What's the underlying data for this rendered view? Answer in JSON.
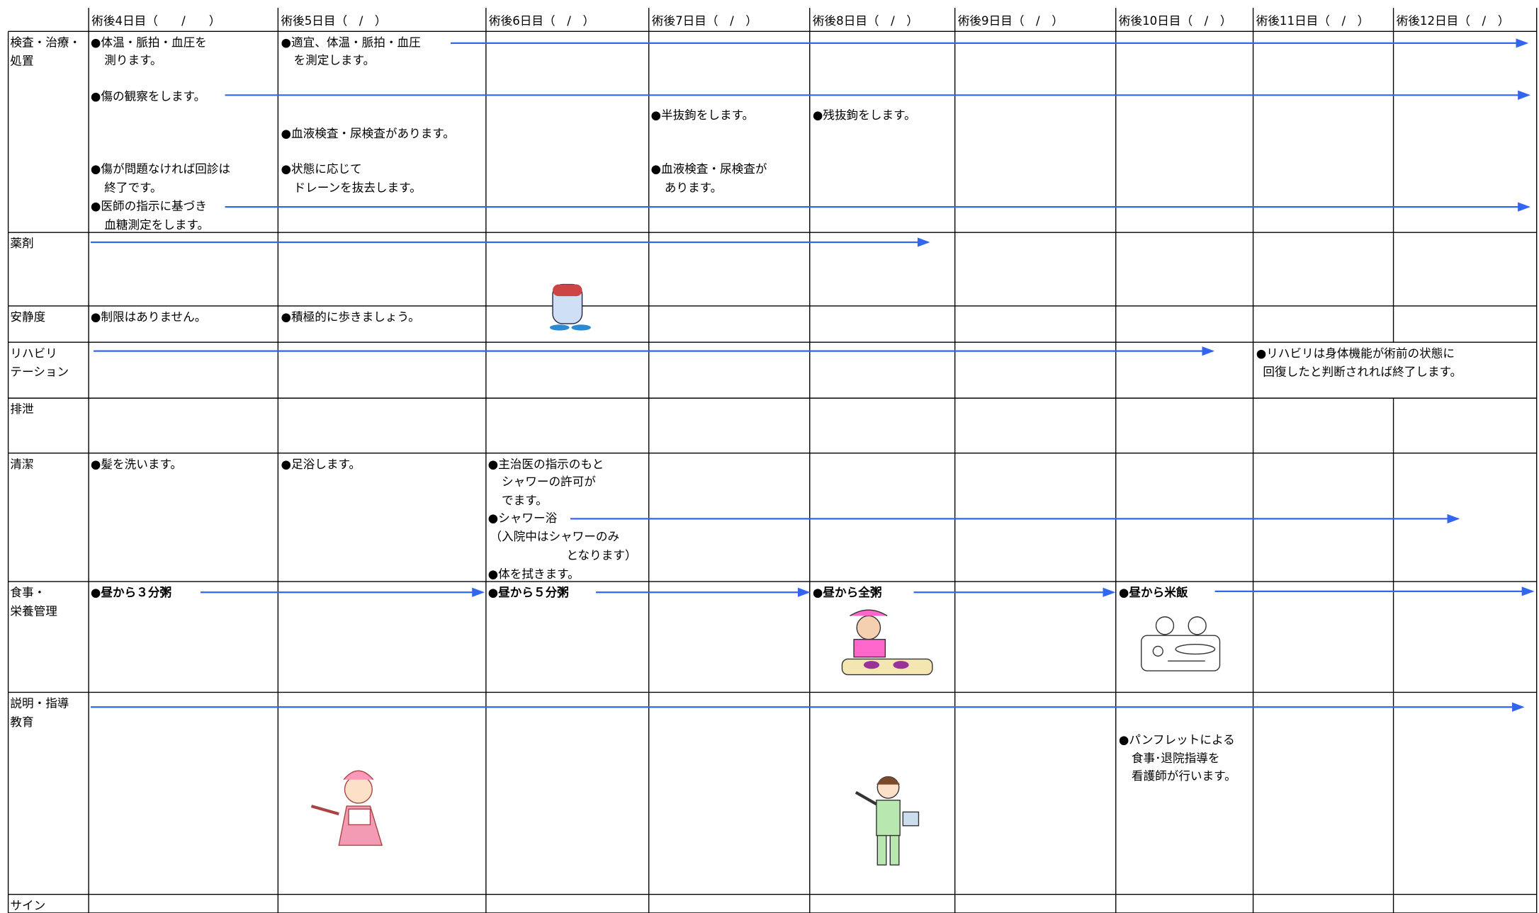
{
  "header": {
    "columns": [
      "術後4日目（　　/　　）",
      "術後5日目（　/　）",
      "術後6日目（　/　）",
      "術後7日目（　/　）",
      "術後8日目（　/　）",
      "術後9日目（　/　）",
      "術後10日目（　/　）",
      "術後11日目（　/　）",
      "術後12日目（　/　）"
    ]
  },
  "rows": [
    {
      "label": [
        "検査・治療・",
        "処置"
      ],
      "notes": [
        "●体温・脈拍・血圧を",
        "測ります。",
        "●適宜、体温・脈拍・血圧",
        "を測定します。",
        "●傷の観察をします。",
        "●半抜鉤をします。",
        "●残抜鉤をします。",
        "●血液検査・尿検査があります。",
        "●傷が問題なければ回診は",
        "終了です。",
        "●状態に応じて",
        "ドレーンを抜去します。",
        "●血液検査・尿検査が",
        "あります。",
        "●医師の指示に基づき",
        "血糖測定をします。"
      ]
    },
    {
      "label": [
        "薬剤"
      ]
    },
    {
      "label": [
        "安静度"
      ],
      "notes": [
        "●制限はありません。",
        "●積極的に歩きましょう。"
      ]
    },
    {
      "label": [
        "リハビリ",
        "テーション"
      ],
      "notes": [
        "●リハビリは身体機能が術前の状態に",
        "回復したと判断されれば終了します。"
      ]
    },
    {
      "label": [
        "排泄"
      ]
    },
    {
      "label": [
        "清潔"
      ],
      "notes": [
        "●髪を洗います。",
        "●足浴します。",
        "●主治医の指示のもと",
        "シャワーの許可が",
        "でます。",
        "●シャワー浴",
        "（入院中はシャワーのみ",
        "となります）",
        "●体を拭きます。"
      ]
    },
    {
      "label": [
        "食事・",
        "栄養管理"
      ],
      "notes": [
        "●昼から３分粥",
        "●昼から５分粥",
        "●昼から全粥",
        "●昼から米飯"
      ]
    },
    {
      "label": [
        "説明・指導",
        "教育"
      ],
      "notes": [
        "●パンフレットによる",
        "食事･退院指導を",
        "看護師が行います。"
      ]
    },
    {
      "label": [
        "サイン"
      ]
    }
  ]
}
